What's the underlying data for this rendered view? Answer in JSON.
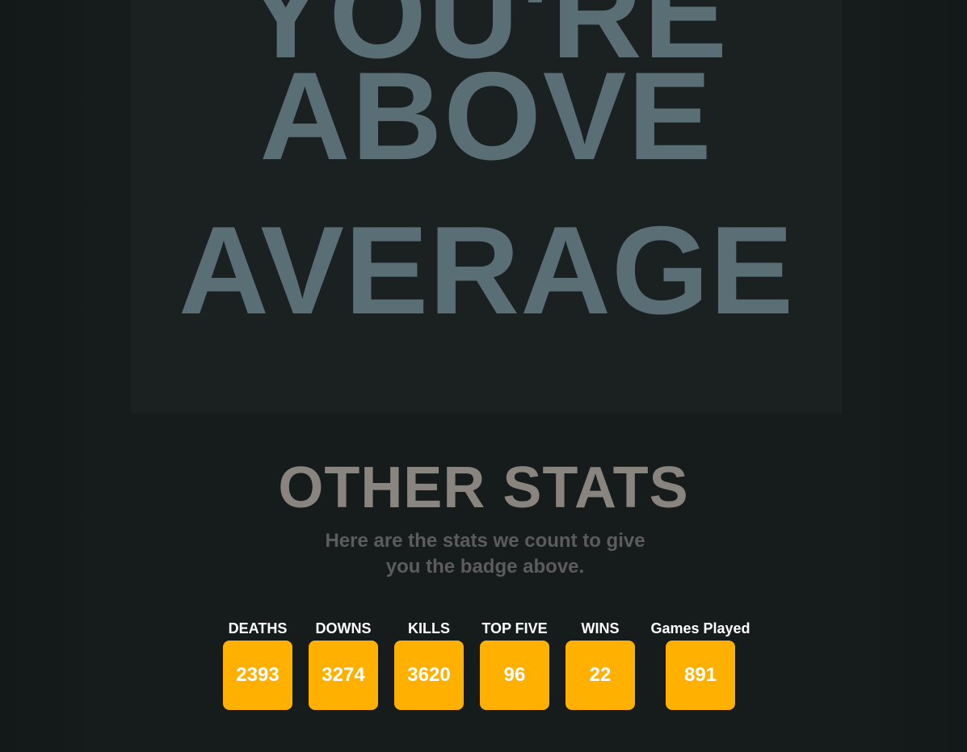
{
  "hero": {
    "line1": "YOU'RE",
    "line2": "ABOVE",
    "line3": "AVERAGE"
  },
  "section": {
    "title": "OTHER STATS",
    "subtitle": "Here are the stats we count to give you the badge above."
  },
  "stats": [
    {
      "label": "DEATHS",
      "value": "2393"
    },
    {
      "label": "DOWNS",
      "value": "3274"
    },
    {
      "label": "KILLS",
      "value": "3620"
    },
    {
      "label": "TOP FIVE",
      "value": "96"
    },
    {
      "label": "WINS",
      "value": "22"
    },
    {
      "label": "Games Played",
      "value": "891"
    }
  ],
  "colors": {
    "background": "#141919",
    "hero_card": "#1b2021",
    "hero_text": "#5a6f75",
    "title_text": "#8a847e",
    "subtitle_text": "#5b5c5b",
    "stat_box": "#ffb000",
    "stat_text": "#ffffff"
  }
}
